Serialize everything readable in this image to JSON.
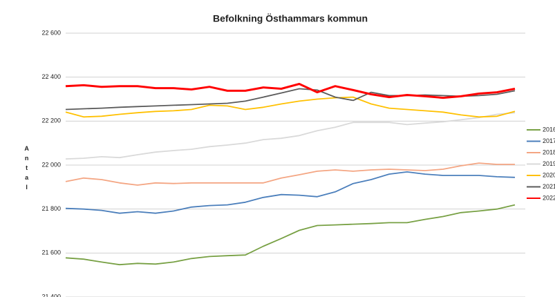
{
  "chart_data": {
    "type": "line",
    "title": "Befolkning Östhammars kommun",
    "ylabel": "Antal",
    "categories": [
      null,
      null,
      null,
      null,
      null,
      null,
      null,
      null,
      null,
      null,
      null,
      null,
      null,
      null,
      null,
      null,
      null,
      null,
      null,
      null,
      null,
      null,
      null,
      null,
      null,
      null
    ],
    "ylim": [
      21400,
      22600
    ],
    "yticks": [
      {
        "value": 21400,
        "label": "21 400"
      },
      {
        "value": 21600,
        "label": "21 600"
      },
      {
        "value": 21800,
        "label": "21 800"
      },
      {
        "value": 22000,
        "label": "22 000"
      },
      {
        "value": 22200,
        "label": "22 200"
      },
      {
        "value": 22400,
        "label": "22 400"
      },
      {
        "value": 22600,
        "label": "22 600"
      }
    ],
    "grid": true,
    "legend": "right",
    "series": [
      {
        "name": "2016",
        "color": "#77a043",
        "values": [
          21578,
          21572,
          21559,
          21547,
          21553,
          21550,
          21559,
          21575,
          21584,
          21588,
          21591,
          21631,
          21666,
          21703,
          21725,
          21728,
          21731,
          21734,
          21738,
          21738,
          21753,
          21766,
          21784,
          21791,
          21800,
          21819
        ]
      },
      {
        "name": "2017",
        "color": "#4a7ebb",
        "values": [
          21803,
          21800,
          21794,
          21781,
          21788,
          21781,
          21791,
          21809,
          21816,
          21819,
          21831,
          21853,
          21866,
          21863,
          21856,
          21878,
          21916,
          21934,
          21959,
          21969,
          21959,
          21953,
          21953,
          21953,
          21947,
          21944
        ]
      },
      {
        "name": "2018",
        "color": "#f4a582",
        "values": [
          21925,
          21941,
          21934,
          21919,
          21909,
          21919,
          21916,
          21919,
          21919,
          21919,
          21919,
          21919,
          21941,
          21956,
          21972,
          21978,
          21972,
          21978,
          21981,
          21978,
          21975,
          21981,
          21997,
          22009,
          22003,
          22003
        ]
      },
      {
        "name": "2019",
        "color": "#d9d9d9",
        "values": [
          22028,
          22031,
          22038,
          22034,
          22047,
          22059,
          22066,
          22072,
          22084,
          22091,
          22100,
          22116,
          22122,
          22134,
          22156,
          22172,
          22194,
          22194,
          22194,
          22184,
          22191,
          22197,
          22206,
          22216,
          22231,
          22238
        ]
      },
      {
        "name": "2020",
        "color": "#ffc000",
        "values": [
          22241,
          22219,
          22222,
          22231,
          22238,
          22244,
          22247,
          22253,
          22272,
          22269,
          22253,
          22263,
          22278,
          22291,
          22300,
          22306,
          22309,
          22278,
          22259,
          22253,
          22247,
          22241,
          22228,
          22219,
          22222,
          22244
        ]
      },
      {
        "name": "2021",
        "color": "#5a5a5a",
        "values": [
          22253,
          22256,
          22259,
          22263,
          22266,
          22269,
          22272,
          22275,
          22278,
          22281,
          22291,
          22309,
          22328,
          22347,
          22341,
          22309,
          22294,
          22331,
          22316,
          22316,
          22319,
          22316,
          22313,
          22316,
          22322,
          22338
        ]
      },
      {
        "name": "2022",
        "color": "#ff0000",
        "values": [
          22359,
          22363,
          22356,
          22359,
          22359,
          22350,
          22350,
          22344,
          22356,
          22338,
          22338,
          22353,
          22347,
          22369,
          22331,
          22359,
          22341,
          22322,
          22309,
          22319,
          22313,
          22306,
          22313,
          22325,
          22331,
          22347
        ]
      }
    ]
  }
}
